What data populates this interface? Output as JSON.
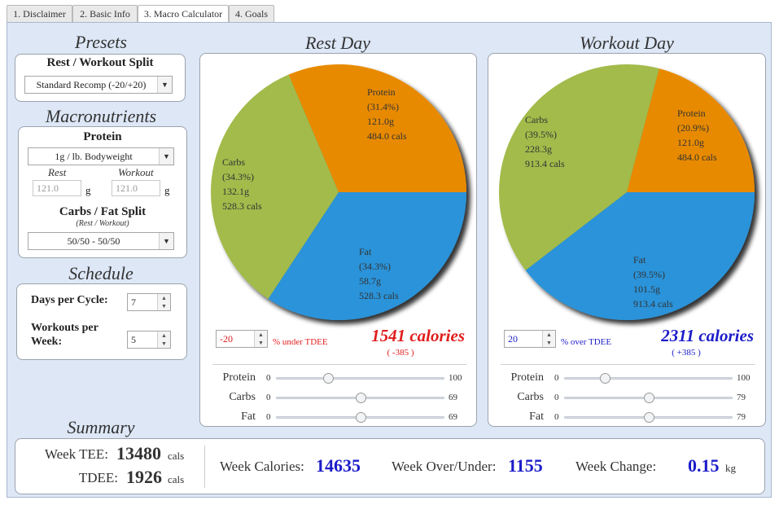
{
  "tabs": [
    {
      "label": "1. Disclaimer"
    },
    {
      "label": "2. Basic Info"
    },
    {
      "label": "3. Macro Calculator"
    },
    {
      "label": "4. Goals"
    }
  ],
  "presets": {
    "title": "Presets",
    "split_label": "Rest / Workout Split",
    "split_value": "Standard Recomp (-20/+20)"
  },
  "macros": {
    "title": "Macronutrients",
    "protein_label": "Protein",
    "protein_value": "1g / lb. Bodyweight",
    "rest_label": "Rest",
    "workout_label": "Workout",
    "rest_input": "121.0",
    "workout_input": "121.0",
    "unit_g": "g",
    "cf_label": "Carbs / Fat Split",
    "cf_sub": "(Rest / Workout)",
    "cf_value": "50/50 - 50/50"
  },
  "schedule": {
    "title": "Schedule",
    "days_label": "Days per Cycle:",
    "days_value": "7",
    "workouts_label_1": "Workouts per",
    "workouts_label_2": "Week:",
    "workouts_value": "5"
  },
  "rest_day": {
    "title": "Rest Day",
    "pie": [
      {
        "name": "Protein",
        "pct": "(31.4%)",
        "grams": "121.0g",
        "cals": "484.0 cals",
        "value": 31.4,
        "color": "#e88a00"
      },
      {
        "name": "Fat",
        "pct": "(34.3%)",
        "grams": "58.7g",
        "cals": "528.3 cals",
        "value": 34.3,
        "color": "#2b93d9"
      },
      {
        "name": "Carbs",
        "pct": "(34.3%)",
        "grams": "132.1g",
        "cals": "528.3 cals",
        "value": 34.3,
        "color": "#a2bb4b"
      }
    ],
    "adjust_value": "-20",
    "adjust_text": "% under TDEE",
    "calories": "1541 calories",
    "diff": "( -385 )",
    "accent": "#e11d1d",
    "sliders": [
      {
        "label": "Protein",
        "min": "0",
        "max": "100",
        "fraction": 0.31
      },
      {
        "label": "Carbs",
        "min": "0",
        "max": "69",
        "fraction": 0.5
      },
      {
        "label": "Fat",
        "min": "0",
        "max": "69",
        "fraction": 0.5
      }
    ]
  },
  "workout_day": {
    "title": "Workout Day",
    "pie": [
      {
        "name": "Protein",
        "pct": "(20.9%)",
        "grams": "121.0g",
        "cals": "484.0 cals",
        "value": 20.9,
        "color": "#e88a00"
      },
      {
        "name": "Fat",
        "pct": "(39.5%)",
        "grams": "101.5g",
        "cals": "913.4 cals",
        "value": 39.5,
        "color": "#2b93d9"
      },
      {
        "name": "Carbs",
        "pct": "(39.5%)",
        "grams": "228.3g",
        "cals": "913.4 cals",
        "value": 39.5,
        "color": "#a2bb4b"
      }
    ],
    "adjust_value": "20",
    "adjust_text": "% over TDEE",
    "calories": "2311 calories",
    "diff": "( +385 )",
    "accent": "#1c1cc9",
    "sliders": [
      {
        "label": "Protein",
        "min": "0",
        "max": "100",
        "fraction": 0.24
      },
      {
        "label": "Carbs",
        "min": "0",
        "max": "79",
        "fraction": 0.5
      },
      {
        "label": "Fat",
        "min": "0",
        "max": "79",
        "fraction": 0.5
      }
    ]
  },
  "summary": {
    "title": "Summary",
    "week_tee_label": "Week TEE:",
    "week_tee_value": "13480",
    "tdee_label": "TDEE:",
    "tdee_value": "1926",
    "cals_unit": "cals",
    "week_cal_label": "Week Calories:",
    "week_cal_value": "14635",
    "over_under_label": "Week Over/Under:",
    "over_under_value": "1155",
    "change_label": "Week Change:",
    "change_value": "0.15",
    "change_unit": "kg",
    "value_color": "#1c1cc9"
  }
}
